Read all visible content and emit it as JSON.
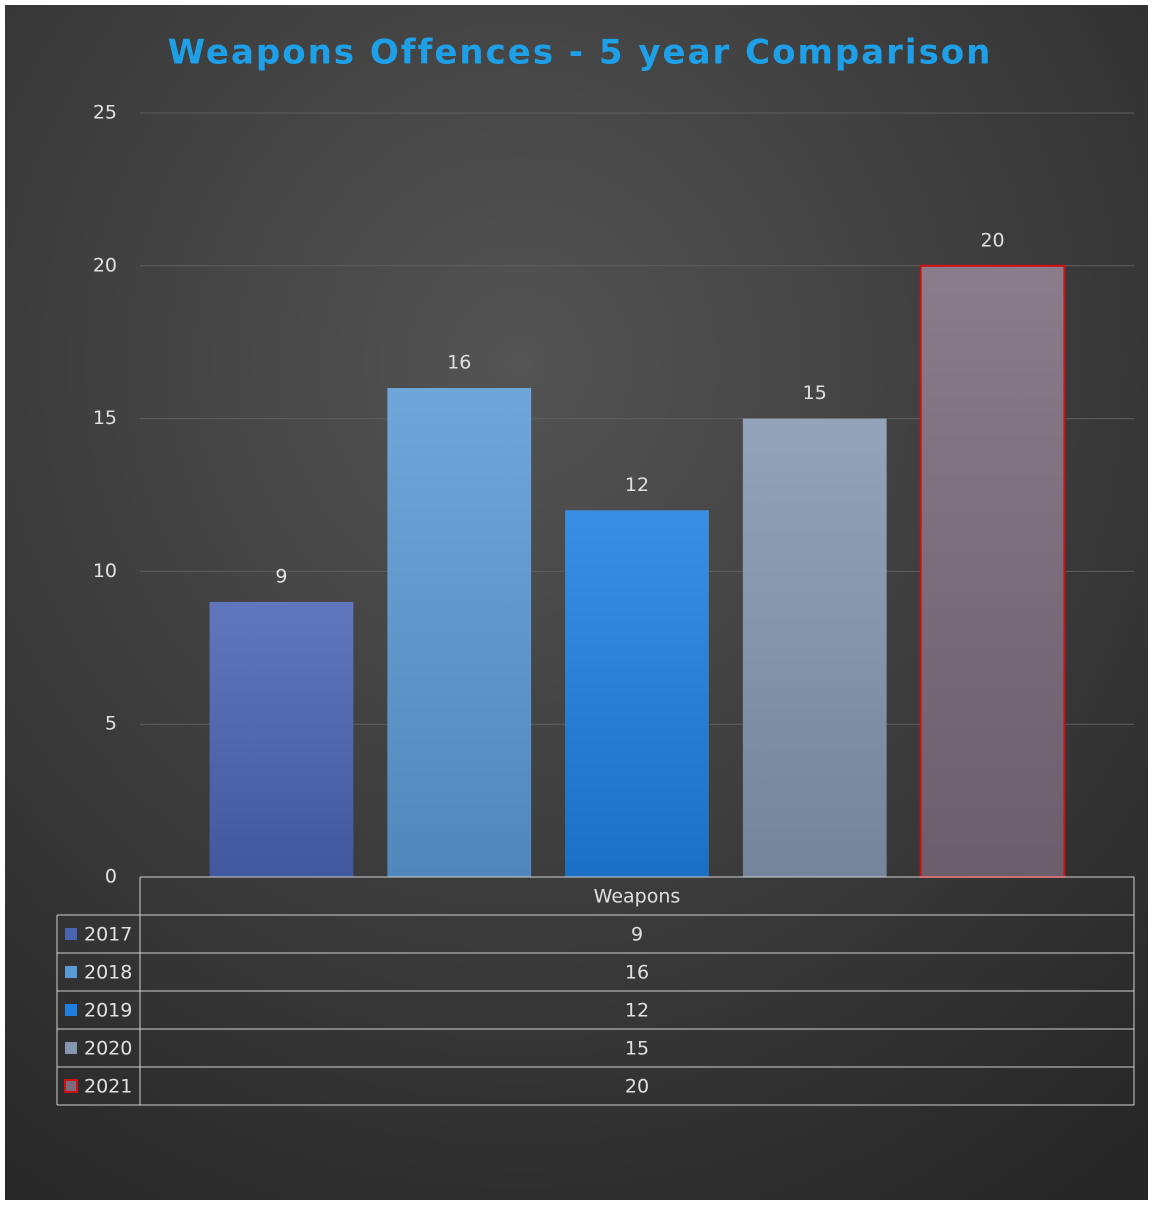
{
  "chart_data": {
    "type": "bar",
    "title": "Weapons Offences - 5 year Comparison",
    "categories": [
      "Weapons"
    ],
    "series": [
      {
        "name": "2017",
        "color": "#4a64b4",
        "values": [
          9
        ]
      },
      {
        "name": "2018",
        "color": "#5b9bd5",
        "values": [
          16
        ]
      },
      {
        "name": "2019",
        "color": "#1f7fe0",
        "values": [
          12
        ]
      },
      {
        "name": "2020",
        "color": "#8497b0",
        "values": [
          15
        ]
      },
      {
        "name": "2021",
        "color": "#7a6a7b",
        "edgecolor": "#d01010",
        "values": [
          20
        ]
      }
    ],
    "ylim": [
      0,
      25
    ],
    "yticks": [
      0,
      5,
      10,
      15,
      20,
      25
    ],
    "grid": true,
    "data_table": true
  }
}
